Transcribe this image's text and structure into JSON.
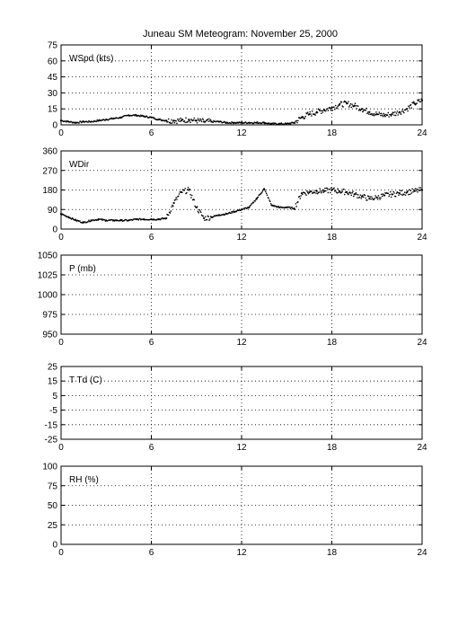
{
  "title": "Juneau SM Meteogram:  November 25, 2000",
  "chart_data": [
    {
      "type": "scatter",
      "label": "WSpd (kts)",
      "xlim": [
        0,
        24
      ],
      "xticks": [
        0,
        6,
        12,
        18,
        24
      ],
      "ylim": [
        0,
        75
      ],
      "yticks": [
        0,
        15,
        30,
        45,
        60,
        75
      ],
      "grid": true,
      "series": [
        {
          "x": [
            0,
            0.5,
            1,
            1.5,
            2,
            2.5,
            3,
            3.5,
            4,
            4.5,
            5,
            5.5,
            6,
            6.5,
            7,
            7.5,
            8,
            8.5,
            9,
            9.5,
            10,
            10.5,
            11,
            11.5,
            12,
            12.5,
            13,
            13.5,
            14,
            14.5,
            15,
            15.5,
            16,
            16.5,
            17,
            17.5,
            18,
            18.5,
            19,
            19.5,
            20,
            20.5,
            21,
            21.5,
            22,
            22.5,
            23,
            23.5,
            24
          ],
          "y": [
            4,
            3,
            2,
            3,
            3,
            4,
            5,
            6,
            7,
            9,
            9,
            8,
            7,
            5,
            4,
            4,
            4,
            5,
            4,
            3,
            3,
            3,
            2,
            2,
            2,
            2,
            2,
            2,
            1,
            1,
            1,
            2,
            7,
            10,
            12,
            14,
            16,
            19,
            20,
            18,
            15,
            12,
            10,
            9,
            10,
            12,
            15,
            20,
            23
          ]
        }
      ]
    },
    {
      "type": "scatter",
      "label": "WDir",
      "xlim": [
        0,
        24
      ],
      "xticks": [
        0,
        6,
        12,
        18,
        24
      ],
      "ylim": [
        0,
        360
      ],
      "yticks": [
        0,
        90,
        180,
        270,
        360
      ],
      "grid": true,
      "series": [
        {
          "x": [
            0,
            0.5,
            1,
            1.5,
            2,
            2.5,
            3,
            3.5,
            4,
            4.5,
            5,
            5.5,
            6,
            6.5,
            7,
            7.5,
            8,
            8.5,
            9,
            9.5,
            10,
            10.5,
            11,
            11.5,
            12,
            12.5,
            13,
            13.5,
            14,
            14.5,
            15,
            15.5,
            16,
            16.5,
            17,
            17.5,
            18,
            18.5,
            19,
            19.5,
            20,
            20.5,
            21,
            21.5,
            22,
            22.5,
            23,
            23.5,
            24
          ],
          "y": [
            70,
            55,
            40,
            30,
            40,
            45,
            40,
            40,
            40,
            40,
            45,
            45,
            45,
            45,
            50,
            120,
            170,
            180,
            100,
            50,
            55,
            65,
            70,
            80,
            90,
            100,
            140,
            185,
            110,
            100,
            100,
            95,
            165,
            170,
            175,
            175,
            180,
            175,
            170,
            160,
            150,
            140,
            145,
            155,
            160,
            165,
            170,
            175,
            180
          ]
        }
      ]
    },
    {
      "type": "scatter",
      "label": "P (mb)",
      "xlim": [
        0,
        24
      ],
      "xticks": [
        0,
        6,
        12,
        18,
        24
      ],
      "ylim": [
        950,
        1050
      ],
      "yticks": [
        950,
        975,
        1000,
        1025,
        1050
      ],
      "grid": true,
      "series": []
    },
    {
      "type": "scatter",
      "label": "T Td (C)",
      "xlim": [
        0,
        24
      ],
      "xticks": [
        0,
        6,
        12,
        18,
        24
      ],
      "ylim": [
        -25,
        25
      ],
      "yticks": [
        -25,
        -15,
        -5,
        5,
        15,
        25
      ],
      "grid": true,
      "series": []
    },
    {
      "type": "scatter",
      "label": "RH (%)",
      "xlim": [
        0,
        24
      ],
      "xticks": [
        0,
        6,
        12,
        18,
        24
      ],
      "ylim": [
        0,
        100
      ],
      "yticks": [
        0,
        25,
        50,
        75,
        100
      ],
      "grid": true,
      "series": []
    }
  ]
}
